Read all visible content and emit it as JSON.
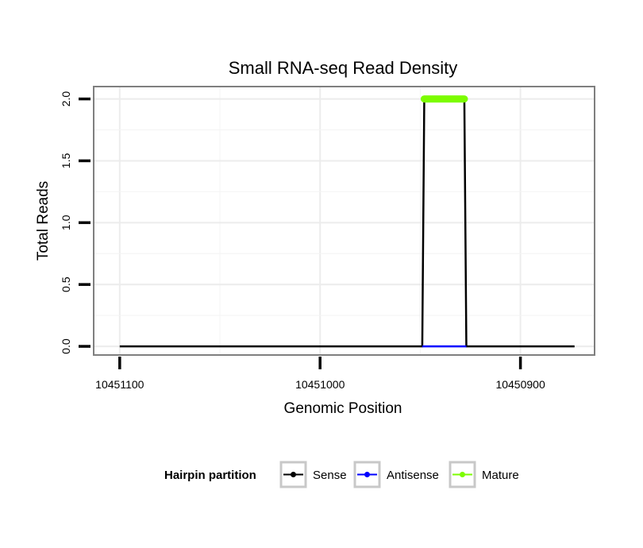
{
  "chart_data": {
    "type": "line",
    "title": "Small RNA-seq Read Density",
    "xlabel": "Genomic Position",
    "ylabel": "Total Reads",
    "xlim": [
      10451113,
      10450863
    ],
    "x_reversed": true,
    "ylim": [
      -0.07,
      2.1
    ],
    "x_ticks": [
      10451100,
      10451000,
      10450900
    ],
    "x_tick_labels": [
      "10451100",
      "10451000",
      "10450900"
    ],
    "y_ticks": [
      0.0,
      0.5,
      1.0,
      1.5,
      2.0
    ],
    "y_tick_labels": [
      "0.0",
      "0.5",
      "1.0",
      "1.5",
      "2.0"
    ],
    "grid": true,
    "legend": {
      "title": "Hairpin partition",
      "placement": "bottom",
      "entries": [
        "Sense",
        "Antisense",
        "Mature"
      ]
    },
    "series": [
      {
        "name": "Sense",
        "color": "#000000",
        "points": [
          [
            10451100,
            0
          ],
          [
            10450949,
            0
          ],
          [
            10450948,
            2
          ],
          [
            10450928,
            2
          ],
          [
            10450927,
            0
          ],
          [
            10450873,
            0
          ]
        ]
      },
      {
        "name": "Antisense",
        "color": "#0000ff",
        "points": [
          [
            10450949,
            0
          ],
          [
            10450927,
            0
          ]
        ]
      },
      {
        "name": "Mature",
        "color": "#7cfc00",
        "points": [
          [
            10450948,
            2
          ],
          [
            10450928,
            2
          ]
        ]
      }
    ]
  }
}
